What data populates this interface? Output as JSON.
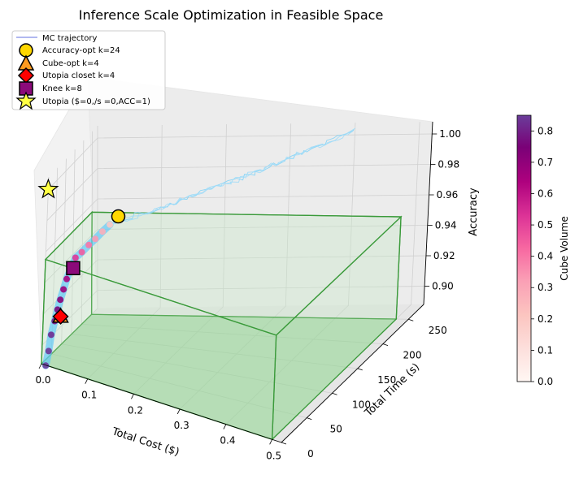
{
  "chart_data": {
    "type": "scatter",
    "title": "Inference Scale Optimization in Feasible Space",
    "xlabel": "Total Cost ($)",
    "ylabel": "Total Time (s)",
    "zlabel": "Accuracy",
    "x_ticks": [
      "0.0",
      "0.1",
      "0.2",
      "0.3",
      "0.4",
      "0.5"
    ],
    "y_ticks": [
      "0",
      "50",
      "100",
      "150",
      "200",
      "250"
    ],
    "z_ticks": [
      "0.90",
      "0.92",
      "0.94",
      "0.96",
      "0.98",
      "1.00"
    ],
    "xlim": [
      0,
      0.52
    ],
    "ylim": [
      0,
      280
    ],
    "zlim": [
      0.888,
      1.008
    ],
    "colorbar": {
      "label": "Cube Volume",
      "ticks": [
        "0.0",
        "0.1",
        "0.2",
        "0.3",
        "0.4",
        "0.5",
        "0.6",
        "0.7",
        "0.8"
      ],
      "range": [
        0,
        0.85
      ]
    },
    "legend": {
      "placement": "top-left",
      "entries": [
        {
          "label": "MC trajectory",
          "marker": "line",
          "color": "#6070e0"
        },
        {
          "label": "Accuracy-opt k=24",
          "marker": "circle",
          "color": "#ffd700"
        },
        {
          "label": "Cube-opt k=4",
          "marker": "triangle",
          "color": "#ff9a1f"
        },
        {
          "label": "Utopia closet k=4",
          "marker": "diamond",
          "color": "#ff0000"
        },
        {
          "label": "Knee k=8",
          "marker": "square",
          "color": "#8b0a7a"
        },
        {
          "label": "Utopia ($=0,/s =0,ACC=1)",
          "marker": "star",
          "color": "#ffff44"
        }
      ]
    },
    "feasible_box": {
      "x": [
        0,
        0.5
      ],
      "y": [
        0,
        250
      ],
      "z": [
        0.888,
        0.955
      ]
    },
    "special_points": [
      {
        "name": "Accuracy-opt k=24",
        "x": 0.08,
        "y": 150,
        "z": 0.968
      },
      {
        "name": "Cube-opt k=4",
        "x": 0.02,
        "y": 40,
        "z": 0.915
      },
      {
        "name": "Utopia closet k=4",
        "x": 0.02,
        "y": 40,
        "z": 0.915
      },
      {
        "name": "Knee k=8",
        "x": 0.03,
        "y": 70,
        "z": 0.943
      },
      {
        "name": "Utopia ($=0,/s =0,ACC=1)",
        "x": 0,
        "y": 0,
        "z": 1.0
      }
    ],
    "scatter_points": [
      {
        "x": 0.005,
        "y": 10,
        "z": 0.886,
        "v": 0.85
      },
      {
        "x": 0.008,
        "y": 15,
        "z": 0.895,
        "v": 0.84
      },
      {
        "x": 0.01,
        "y": 20,
        "z": 0.905,
        "v": 0.82
      },
      {
        "x": 0.013,
        "y": 28,
        "z": 0.913,
        "v": 0.78
      },
      {
        "x": 0.016,
        "y": 33,
        "z": 0.92,
        "v": 0.76
      },
      {
        "x": 0.019,
        "y": 38,
        "z": 0.926,
        "v": 0.72
      },
      {
        "x": 0.022,
        "y": 45,
        "z": 0.932,
        "v": 0.68
      },
      {
        "x": 0.025,
        "y": 52,
        "z": 0.938,
        "v": 0.65
      },
      {
        "x": 0.03,
        "y": 62,
        "z": 0.945,
        "v": 0.55
      },
      {
        "x": 0.034,
        "y": 70,
        "z": 0.95,
        "v": 0.52
      },
      {
        "x": 0.04,
        "y": 85,
        "z": 0.952,
        "v": 0.45
      },
      {
        "x": 0.047,
        "y": 100,
        "z": 0.955,
        "v": 0.4
      },
      {
        "x": 0.055,
        "y": 110,
        "z": 0.958,
        "v": 0.33
      },
      {
        "x": 0.062,
        "y": 125,
        "z": 0.961,
        "v": 0.28
      },
      {
        "x": 0.07,
        "y": 138,
        "z": 0.964,
        "v": 0.2
      }
    ],
    "mc_trajectory": {
      "x": [
        0,
        0.4
      ],
      "y": [
        0,
        280
      ],
      "z": [
        0.88,
        1.015
      ]
    }
  }
}
